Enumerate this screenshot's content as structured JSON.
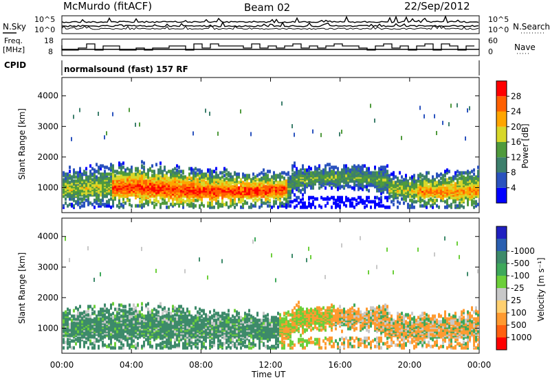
{
  "header": {
    "station": "McMurdo (fitACF)",
    "beam": "Beam 02",
    "date": "22/Sep/2012"
  },
  "top_panels": {
    "nsky_label": "N.Sky",
    "nsearch_label": "N.Search",
    "noise_ticks_left": [
      "10^5",
      "10^0"
    ],
    "noise_ticks_right": [
      "10^5",
      "10^0"
    ],
    "freq_label_1": "Freq.",
    "freq_label_2": "[MHz]",
    "freq_ticks": [
      "18",
      "8"
    ],
    "nave_label": "Nave",
    "nave_ticks": [
      "60",
      "0"
    ],
    "cpid_label": "CPID",
    "cpid_text": "normalsound (fast) 157 RF"
  },
  "chart_data": [
    {
      "type": "heatmap",
      "panel": "power",
      "ylabel": "Slant Range [km]",
      "xlabel": "Time UT",
      "x_ticks": [
        "00:00",
        "04:00",
        "08:00",
        "12:00",
        "16:00",
        "20:00",
        "00:00"
      ],
      "y_ticks": [
        "1000",
        "2000",
        "3000",
        "4000"
      ],
      "ylim": [
        180,
        4600
      ],
      "xlim_hours": [
        0,
        24
      ],
      "colorbar": {
        "label": "Power [dB]",
        "ticks": [
          "4",
          "8",
          "12",
          "16",
          "20",
          "24",
          "28"
        ],
        "colors": [
          "#0000ff",
          "#2a52be",
          "#3d7f6c",
          "#4f9a3c",
          "#d7d72a",
          "#ffa500",
          "#ff6000",
          "#ff0000"
        ]
      }
    },
    {
      "type": "heatmap",
      "panel": "velocity",
      "ylabel": "Slant Range [km]",
      "xlabel": "Time UT",
      "x_ticks": [
        "00:00",
        "04:00",
        "08:00",
        "12:00",
        "16:00",
        "20:00",
        "00:00"
      ],
      "y_ticks": [
        "1000",
        "2000",
        "3000",
        "4000"
      ],
      "ylim": [
        180,
        4600
      ],
      "xlim_hours": [
        0,
        24
      ],
      "colorbar": {
        "label": "Velocity [m s⁻¹]",
        "ticks": [
          "1000",
          "500",
          "100",
          "25",
          "-25",
          "-100",
          "-500",
          "-1000"
        ],
        "colors": [
          "#2020c0",
          "#2a5fb0",
          "#3d8a6a",
          "#3ea85a",
          "#6ccf3a",
          "#c8c8c8",
          "#ffd070",
          "#ff9a30",
          "#ff6010",
          "#ff0000"
        ]
      }
    }
  ],
  "time_axis_label": "Time UT"
}
